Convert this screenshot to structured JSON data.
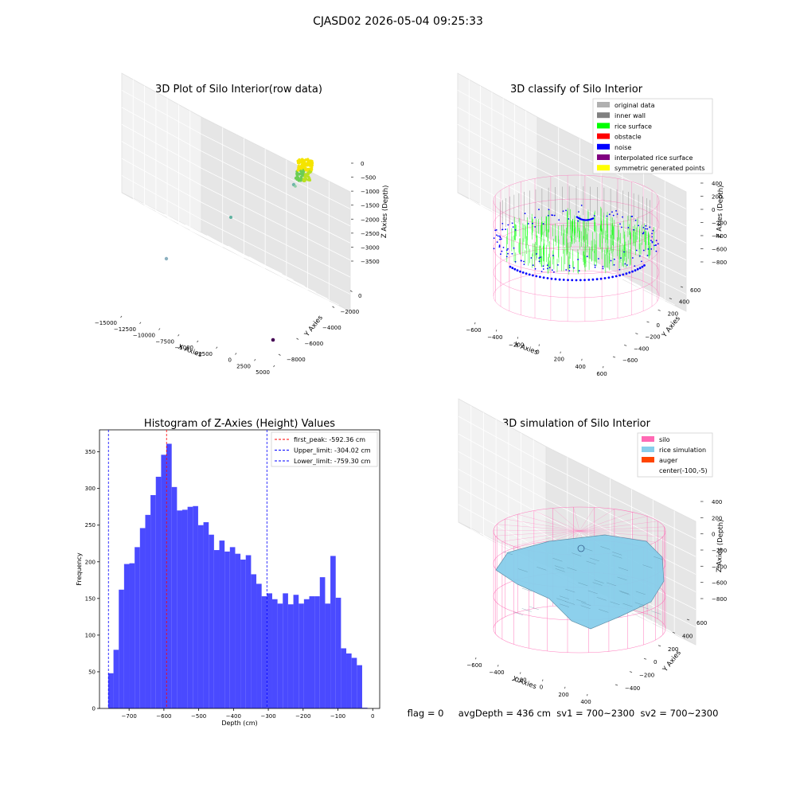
{
  "figure": {
    "suptitle": "CJASD02 2026-05-04 09:25:33",
    "footer": "flag = 0     avgDepth = 436 cm  sv1 = 700~2300  sv2 = 700~2300"
  },
  "colors": {
    "bar": "#4a4aff",
    "first_peak": "#ff0000",
    "limits": "#0000ff",
    "silo_wire": "#ff69b4",
    "rice_surface": "#00ff00",
    "noise": "#0000ff",
    "rice_sim": "#87ceeb",
    "auger": "#ff4500",
    "original": "#b0b0b0",
    "inner_wall": "#808080",
    "obstacle": "#ff0000",
    "interp": "#800080",
    "symmetric": "#ffff00"
  },
  "chart_data": [
    {
      "type": "scatter",
      "panel": "raw",
      "title": "3D Plot of Silo Interior(row data)",
      "xlabel": "X Axies",
      "ylabel": "Y Axies",
      "zlabel": "Z Axies (Depth)",
      "x_ticks": [
        "−15000",
        "−12500",
        "−10000",
        "−7500",
        "−5000",
        "−2500",
        "0",
        "2500",
        "5000"
      ],
      "y_ticks": [
        "−8000",
        "−6000",
        "−4000",
        "−2000",
        "0"
      ],
      "z_ticks": [
        "0",
        "−500",
        "−1000",
        "−1500",
        "−2000",
        "−2500",
        "−3000",
        "−3500"
      ]
    },
    {
      "type": "scatter",
      "panel": "classify",
      "title": "3D classify of Silo Interior",
      "xlabel": "X Axies",
      "ylabel": "Y Axies",
      "zlabel": "Z Axies (Depth)",
      "x_ticks": [
        "−600",
        "−400",
        "−200",
        "0",
        "200",
        "400",
        "600"
      ],
      "y_ticks": [
        "−600",
        "−400",
        "−200",
        "0",
        "200",
        "400",
        "600"
      ],
      "z_ticks": [
        "400",
        "200",
        "0",
        "−200",
        "−400",
        "−600",
        "−800"
      ],
      "legend": [
        {
          "label": "original data",
          "color": "#b0b0b0"
        },
        {
          "label": "inner wall",
          "color": "#808080"
        },
        {
          "label": "rice surface",
          "color": "#00ff00"
        },
        {
          "label": "obstacle",
          "color": "#ff0000"
        },
        {
          "label": "noise",
          "color": "#0000ff"
        },
        {
          "label": "interpolated rice surface",
          "color": "#800080"
        },
        {
          "label": "symmetric generated points",
          "color": "#ffff00"
        }
      ]
    },
    {
      "type": "bar",
      "panel": "histogram",
      "title": "Histogram of Z-Axies (Height) Values",
      "xlabel": "Depth (cm)",
      "ylabel": "Frequency",
      "xlim": [
        -785,
        20
      ],
      "ylim": [
        0,
        380
      ],
      "x_ticks": [
        -700,
        -600,
        -500,
        -400,
        -300,
        -200,
        -100,
        0
      ],
      "y_ticks": [
        0,
        50,
        100,
        150,
        200,
        250,
        300,
        350
      ],
      "bin_start": -760,
      "bin_width": 15.2,
      "values": [
        48,
        80,
        162,
        197,
        198,
        220,
        246,
        264,
        291,
        316,
        346,
        361,
        302,
        270,
        271,
        275,
        276,
        250,
        254,
        237,
        216,
        229,
        214,
        220,
        211,
        203,
        209,
        183,
        170,
        153,
        157,
        149,
        143,
        157,
        142,
        155,
        143,
        149,
        153,
        153,
        179,
        143,
        208,
        151,
        82,
        75,
        69,
        59,
        1
      ],
      "lines": [
        {
          "label": "first_peak: -592.36 cm",
          "x": -592.36,
          "color": "#ff0000"
        },
        {
          "label": "Upper_limit: -304.02 cm",
          "x": -304.02,
          "color": "#0000ff"
        },
        {
          "label": "Lower_limit: -759.30 cm",
          "x": -759.3,
          "color": "#0000ff"
        }
      ]
    },
    {
      "type": "area",
      "panel": "simulation",
      "title": "3D simulation of Silo Interior",
      "xlabel": "X Axies",
      "ylabel": "Y Axies",
      "zlabel": "Z Axies (Depth)",
      "x_ticks": [
        "−600",
        "−400",
        "−200",
        "0",
        "200",
        "400"
      ],
      "y_ticks": [
        "−400",
        "−200",
        "0",
        "200",
        "400",
        "600"
      ],
      "z_ticks": [
        "400",
        "200",
        "0",
        "−200",
        "−400",
        "−600",
        "−800"
      ],
      "legend": [
        {
          "label": "silo",
          "color": "#ff69b4"
        },
        {
          "label": "rice simulation",
          "color": "#87ceeb"
        },
        {
          "label": "auger",
          "color": "#ff4500"
        },
        {
          "label": "center(-100,-5)",
          "color": ""
        }
      ]
    }
  ]
}
